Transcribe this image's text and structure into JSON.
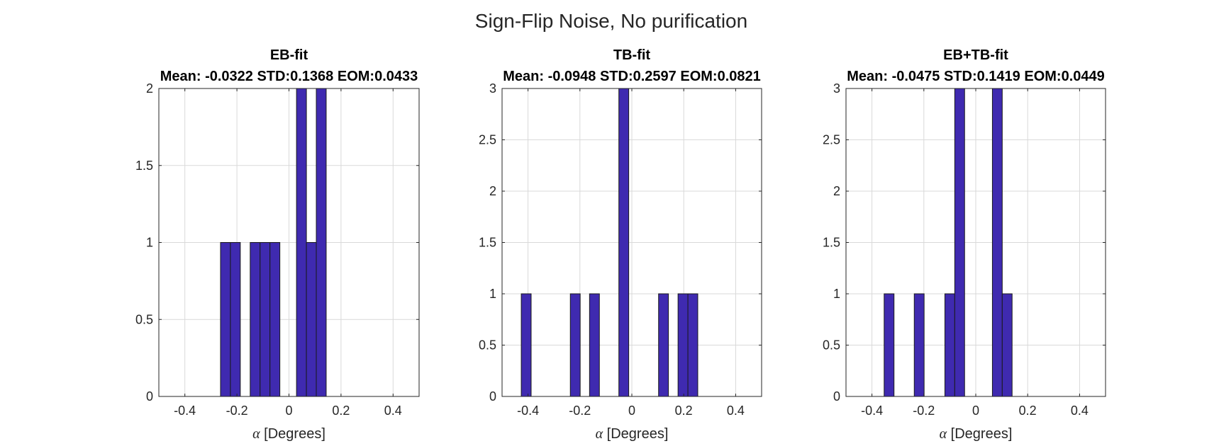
{
  "figure": {
    "title": "Sign-Flip Noise, No purification",
    "bar_color": "#3F2AB0"
  },
  "chart_data": [
    {
      "type": "bar",
      "title": "EB-fit",
      "subtitle": "Mean: -0.0322 STD:0.1368 EOM:0.0433",
      "xlabel_symbol": "α",
      "xlabel_text": " [Degrees]",
      "xlim": [
        -0.5,
        0.5
      ],
      "ylim": [
        0,
        2
      ],
      "xticks": [
        -0.4,
        -0.2,
        0,
        0.2,
        0.4
      ],
      "xtick_labels": [
        "-0.4",
        "-0.2",
        "0",
        "0.2",
        "0.4"
      ],
      "yticks": [
        0,
        0.5,
        1,
        1.5,
        2
      ],
      "ytick_labels": [
        "0",
        "0.5",
        "1",
        "1.5",
        "2"
      ],
      "bin_width": 0.038,
      "bins": [
        {
          "x": -0.244,
          "count": 1
        },
        {
          "x": -0.206,
          "count": 1
        },
        {
          "x": -0.13,
          "count": 1
        },
        {
          "x": -0.092,
          "count": 1
        },
        {
          "x": -0.054,
          "count": 1
        },
        {
          "x": 0.048,
          "count": 2
        },
        {
          "x": 0.086,
          "count": 1
        },
        {
          "x": 0.124,
          "count": 2
        }
      ]
    },
    {
      "type": "bar",
      "title": "TB-fit",
      "subtitle": "Mean: -0.0948 STD:0.2597 EOM:0.0821",
      "xlabel_symbol": "α",
      "xlabel_text": " [Degrees]",
      "xlim": [
        -0.5,
        0.5
      ],
      "ylim": [
        0,
        3
      ],
      "xticks": [
        -0.4,
        -0.2,
        0,
        0.2,
        0.4
      ],
      "xtick_labels": [
        "-0.4",
        "-0.2",
        "0",
        "0.2",
        "0.4"
      ],
      "yticks": [
        0,
        0.5,
        1,
        1.5,
        2,
        2.5,
        3
      ],
      "ytick_labels": [
        "0",
        "0.5",
        "1",
        "1.5",
        "2",
        "2.5",
        "3"
      ],
      "bin_width": 0.038,
      "bins": [
        {
          "x": -0.407,
          "count": 1
        },
        {
          "x": -0.218,
          "count": 1
        },
        {
          "x": -0.144,
          "count": 1
        },
        {
          "x": -0.031,
          "count": 3
        },
        {
          "x": 0.122,
          "count": 1
        },
        {
          "x": 0.197,
          "count": 1
        },
        {
          "x": 0.235,
          "count": 1
        }
      ]
    },
    {
      "type": "bar",
      "title": "EB+TB-fit",
      "subtitle": "Mean: -0.0475 STD:0.1419 EOM:0.0449",
      "xlabel_symbol": "α",
      "xlabel_text": " [Degrees]",
      "xlim": [
        -0.5,
        0.5
      ],
      "ylim": [
        0,
        3
      ],
      "xticks": [
        -0.4,
        -0.2,
        0,
        0.2,
        0.4
      ],
      "xtick_labels": [
        "-0.4",
        "-0.2",
        "0",
        "0.2",
        "0.4"
      ],
      "yticks": [
        0,
        0.5,
        1,
        1.5,
        2,
        2.5,
        3
      ],
      "ytick_labels": [
        "0",
        "0.5",
        "1",
        "1.5",
        "2",
        "2.5",
        "3"
      ],
      "bin_width": 0.038,
      "bins": [
        {
          "x": -0.334,
          "count": 1
        },
        {
          "x": -0.218,
          "count": 1
        },
        {
          "x": -0.1,
          "count": 1
        },
        {
          "x": -0.062,
          "count": 3
        },
        {
          "x": 0.083,
          "count": 3
        },
        {
          "x": 0.121,
          "count": 1
        }
      ]
    }
  ]
}
